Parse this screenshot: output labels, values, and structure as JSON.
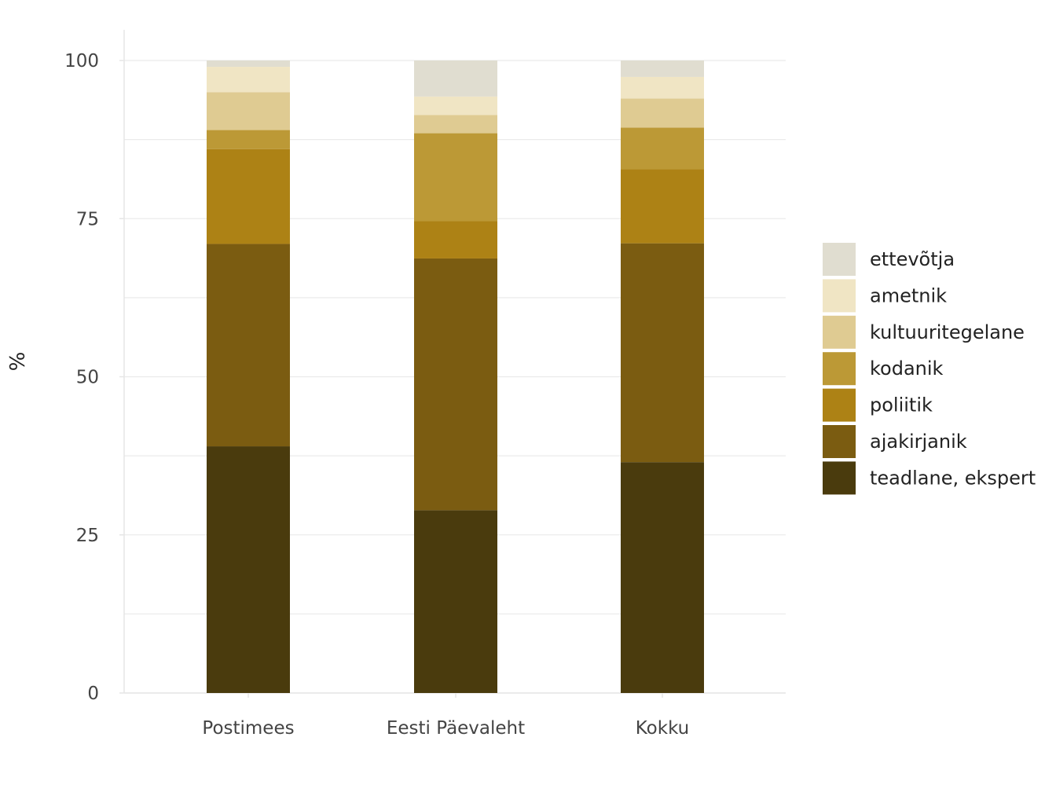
{
  "chart_data": {
    "type": "bar",
    "stacked": true,
    "title": "",
    "xlabel": "",
    "ylabel": "%",
    "ylim": [
      0,
      100
    ],
    "yticks": [
      0,
      25,
      50,
      75,
      100
    ],
    "grid": true,
    "legend_position": "right",
    "categories": [
      "Postimees",
      "Eesti Päevaleht",
      "Kokku"
    ],
    "series": [
      {
        "name": "teadlane, ekspert",
        "color": "#4a3b0d",
        "values": [
          39.0,
          28.9,
          36.5
        ]
      },
      {
        "name": "ajakirjanik",
        "color": "#7b5c11",
        "values": [
          32.0,
          39.8,
          34.6
        ]
      },
      {
        "name": "poliitik",
        "color": "#ad8215",
        "values": [
          15.0,
          5.9,
          11.7
        ]
      },
      {
        "name": "kodanik",
        "color": "#bc9936",
        "values": [
          3.0,
          13.9,
          6.6
        ]
      },
      {
        "name": "kultuuritegelane",
        "color": "#dfcb92",
        "values": [
          6.0,
          2.9,
          4.6
        ]
      },
      {
        "name": "ametnik",
        "color": "#f0e5c4",
        "values": [
          4.0,
          2.9,
          3.4
        ]
      },
      {
        "name": "ettevõtja",
        "color": "#e0ddd0",
        "values": [
          1.0,
          5.7,
          2.6
        ]
      }
    ]
  }
}
